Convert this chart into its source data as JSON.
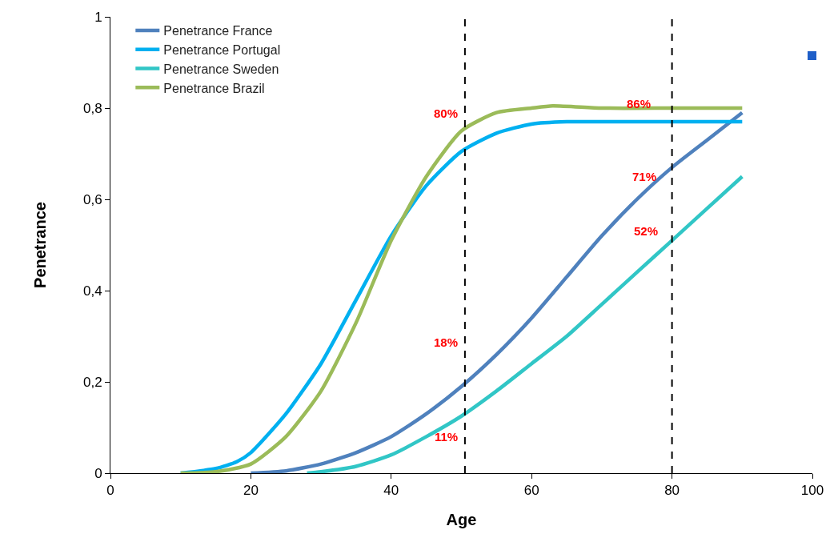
{
  "chart_data": {
    "type": "line",
    "xlabel": "Age",
    "ylabel": "Penetrance",
    "xlim": [
      0,
      100
    ],
    "ylim": [
      0,
      1
    ],
    "xticks": [
      0,
      20,
      40,
      60,
      80,
      100
    ],
    "yticks": [
      0,
      {
        "value": 0.2,
        "label": "0,2"
      },
      {
        "value": 0.4,
        "label": "0,4"
      },
      {
        "value": 0.6,
        "label": "0,6"
      },
      {
        "value": 0.8,
        "label": "0,8"
      },
      1
    ],
    "grid": false,
    "legend": "top left",
    "line_style": "solid",
    "marker": "none",
    "series": [
      {
        "name": "Penetrance France",
        "color": "#4f81bd",
        "x": [
          20,
          25,
          30,
          35,
          40,
          45,
          50,
          55,
          60,
          65,
          70,
          75,
          80,
          85,
          90
        ],
        "values": [
          0,
          0.005,
          0.02,
          0.045,
          0.08,
          0.13,
          0.19,
          0.26,
          0.34,
          0.43,
          0.52,
          0.6,
          0.67,
          0.73,
          0.79
        ]
      },
      {
        "name": "Penetrance Portugal",
        "color": "#00b0f0",
        "x": [
          10,
          15,
          18,
          20,
          25,
          30,
          35,
          40,
          45,
          50,
          55,
          60,
          65,
          70,
          80,
          90
        ],
        "values": [
          0,
          0.01,
          0.025,
          0.045,
          0.13,
          0.24,
          0.38,
          0.52,
          0.63,
          0.705,
          0.745,
          0.765,
          0.77,
          0.77,
          0.77,
          0.77
        ]
      },
      {
        "name": "Penetrance Sweden",
        "color": "#31c6c6",
        "x": [
          28,
          30,
          35,
          40,
          45,
          50,
          55,
          60,
          65,
          70,
          75,
          80,
          85,
          90
        ],
        "values": [
          0,
          0.003,
          0.015,
          0.04,
          0.08,
          0.125,
          0.18,
          0.24,
          0.3,
          0.37,
          0.44,
          0.51,
          0.58,
          0.65
        ]
      },
      {
        "name": "Penetrance Brazil",
        "color": "#9bbb59",
        "x": [
          10,
          15,
          20,
          25,
          30,
          35,
          40,
          45,
          50,
          55,
          60,
          63,
          70,
          80,
          90
        ],
        "values": [
          0,
          0.003,
          0.02,
          0.08,
          0.18,
          0.33,
          0.51,
          0.65,
          0.75,
          0.79,
          0.8,
          0.805,
          0.8,
          0.8,
          0.8
        ]
      }
    ],
    "ref_lines": [
      {
        "axis": "x",
        "value": 50.5,
        "color": "#000000",
        "line_style": "dashed"
      },
      {
        "axis": "x",
        "value": 80,
        "color": "#000000",
        "line_style": "dashed"
      }
    ],
    "annotations": [
      "80%",
      "18%",
      "11%",
      "86%",
      "71%",
      "52%"
    ]
  }
}
